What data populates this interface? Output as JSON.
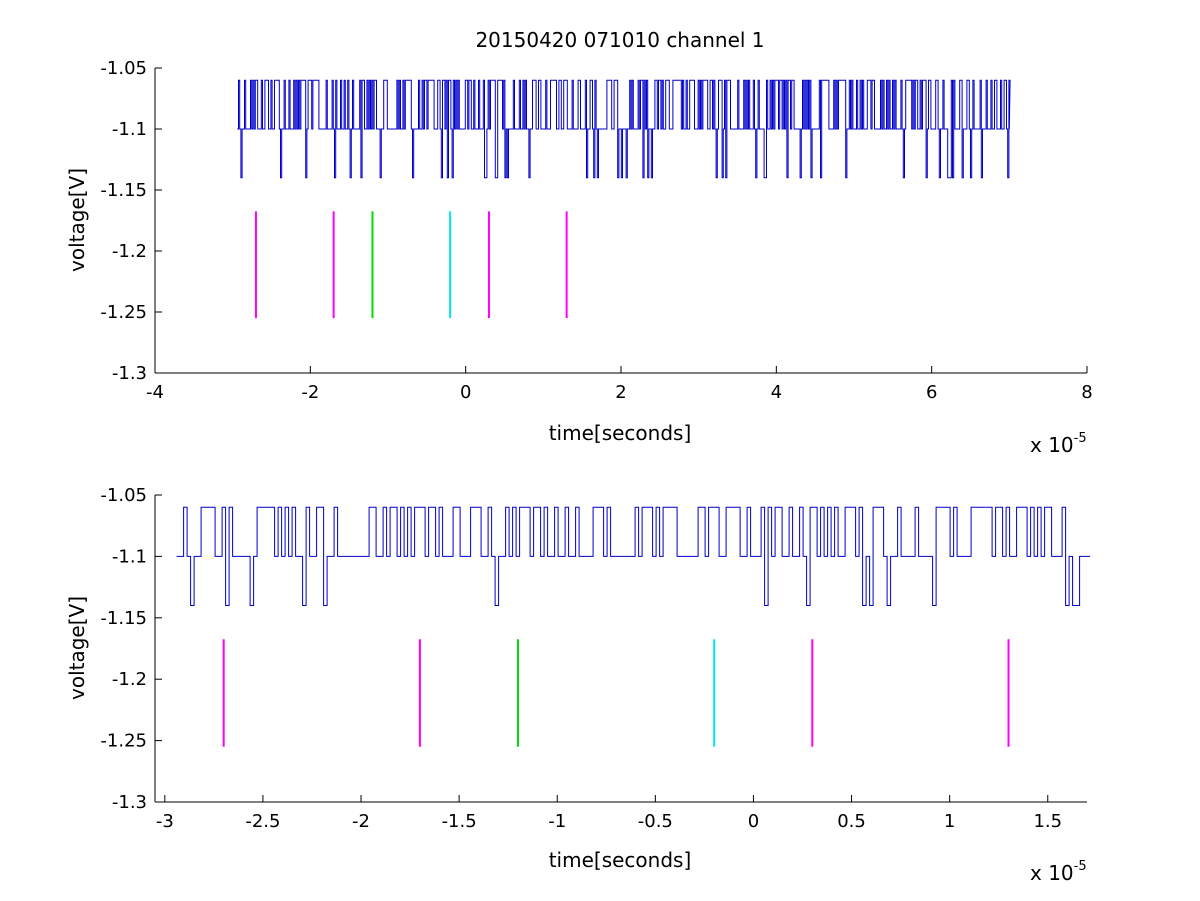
{
  "chart_data": [
    {
      "type": "line",
      "title": "20150420 071010 channel 1",
      "xlabel": "time[seconds]",
      "ylabel": "voltage[V]",
      "x_exponent_label": "x 10",
      "x_exponent_power": "-5",
      "xlim": [
        -4,
        8
      ],
      "ylim": [
        -1.3,
        -1.05
      ],
      "x_ticks": [
        "-4",
        "-2",
        "0",
        "2",
        "4",
        "6",
        "8"
      ],
      "x_tick_values": [
        -4,
        -2,
        0,
        2,
        4,
        6,
        8
      ],
      "y_ticks": [
        "-1.3",
        "-1.25",
        "-1.2",
        "-1.15",
        "-1.1",
        "-1.05"
      ],
      "y_tick_values": [
        -1.3,
        -1.25,
        -1.2,
        -1.15,
        -1.1,
        -1.05
      ],
      "signal": {
        "color": "#0000cc",
        "x_range": [
          -2.94,
          7.0
        ],
        "baseline": -1.1,
        "levels": [
          -1.06,
          -1.1,
          -1.14
        ]
      },
      "markers": [
        {
          "x": -2.7,
          "y1": -1.1675,
          "y2": -1.255,
          "color": "#ff00ff"
        },
        {
          "x": -1.7,
          "y1": -1.1675,
          "y2": -1.255,
          "color": "#ff00ff"
        },
        {
          "x": -1.2,
          "y1": -1.1675,
          "y2": -1.255,
          "color": "#00dd00"
        },
        {
          "x": -0.2,
          "y1": -1.1675,
          "y2": -1.255,
          "color": "#00e5ee"
        },
        {
          "x": 0.3,
          "y1": -1.1675,
          "y2": -1.255,
          "color": "#ff00ff"
        },
        {
          "x": 1.3,
          "y1": -1.1675,
          "y2": -1.255,
          "color": "#ff00ff"
        }
      ]
    },
    {
      "type": "line",
      "title": "",
      "xlabel": "time[seconds]",
      "ylabel": "voltage[V]",
      "x_exponent_label": "x 10",
      "x_exponent_power": "-5",
      "xlim": [
        -3.05,
        1.7
      ],
      "ylim": [
        -1.3,
        -1.05
      ],
      "x_ticks": [
        "-3",
        "-2.5",
        "-2",
        "-1.5",
        "-1",
        "-0.5",
        "0",
        "0.5",
        "1",
        "1.5"
      ],
      "x_tick_values": [
        -3,
        -2.5,
        -2,
        -1.5,
        -1,
        -0.5,
        0,
        0.5,
        1,
        1.5
      ],
      "y_ticks": [
        "-1.3",
        "-1.25",
        "-1.2",
        "-1.15",
        "-1.1",
        "-1.05"
      ],
      "y_tick_values": [
        -1.3,
        -1.25,
        -1.2,
        -1.15,
        -1.1,
        -1.05
      ],
      "signal": {
        "color": "#0000cc",
        "x_range": [
          -2.94,
          1.7
        ],
        "baseline": -1.1,
        "levels": [
          -1.06,
          -1.1,
          -1.14
        ]
      },
      "markers": [
        {
          "x": -2.7,
          "y1": -1.1675,
          "y2": -1.255,
          "color": "#ff00ff"
        },
        {
          "x": -1.7,
          "y1": -1.1675,
          "y2": -1.255,
          "color": "#ff00ff"
        },
        {
          "x": -1.2,
          "y1": -1.1675,
          "y2": -1.255,
          "color": "#00dd00"
        },
        {
          "x": -0.2,
          "y1": -1.1675,
          "y2": -1.255,
          "color": "#00e5ee"
        },
        {
          "x": 0.3,
          "y1": -1.1675,
          "y2": -1.255,
          "color": "#ff00ff"
        },
        {
          "x": 1.3,
          "y1": -1.1675,
          "y2": -1.255,
          "color": "#ff00ff"
        }
      ]
    }
  ]
}
